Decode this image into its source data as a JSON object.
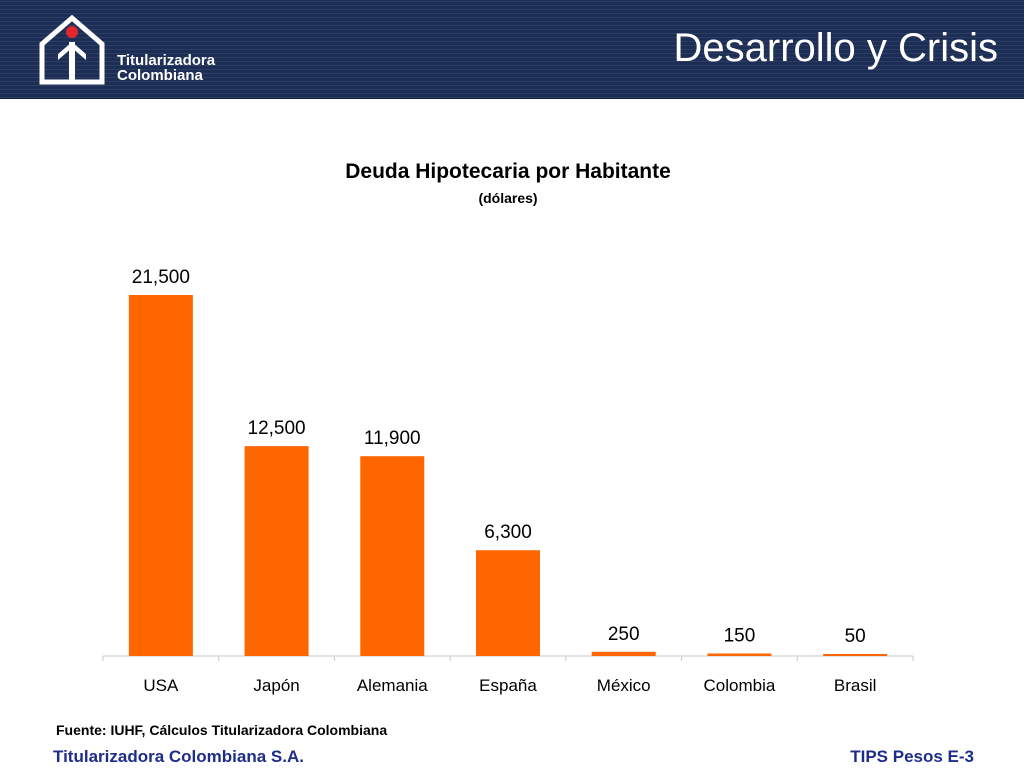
{
  "header": {
    "title": "Desarrollo y Crisis",
    "logo_line1": "Titularizadora",
    "logo_line2": "Colombiana",
    "logo_icon": "house-arrow-icon",
    "background_color": "#1c2e55"
  },
  "chart_data": {
    "type": "bar",
    "title": "Deuda Hipotecaria por Habitante",
    "subtitle": "(dólares)",
    "categories": [
      "USA",
      "Japón",
      "Alemania",
      "España",
      "México",
      "Colombia",
      "Brasil"
    ],
    "values": [
      21500,
      12500,
      11900,
      6300,
      250,
      150,
      50
    ],
    "value_labels": [
      "21,500",
      "12,500",
      "11,900",
      "6,300",
      "250",
      "150",
      "50"
    ],
    "bar_color": "#ff6600",
    "ylim": [
      0,
      21500
    ],
    "grid": false,
    "legend": "none",
    "xlabel": "",
    "ylabel": ""
  },
  "source": "Fuente: IUHF, Cálculos Titularizadora Colombiana",
  "footer": {
    "left": "Titularizadora Colombiana S.A.",
    "right": "TIPS Pesos E-3",
    "color": "#1f2d8a"
  }
}
